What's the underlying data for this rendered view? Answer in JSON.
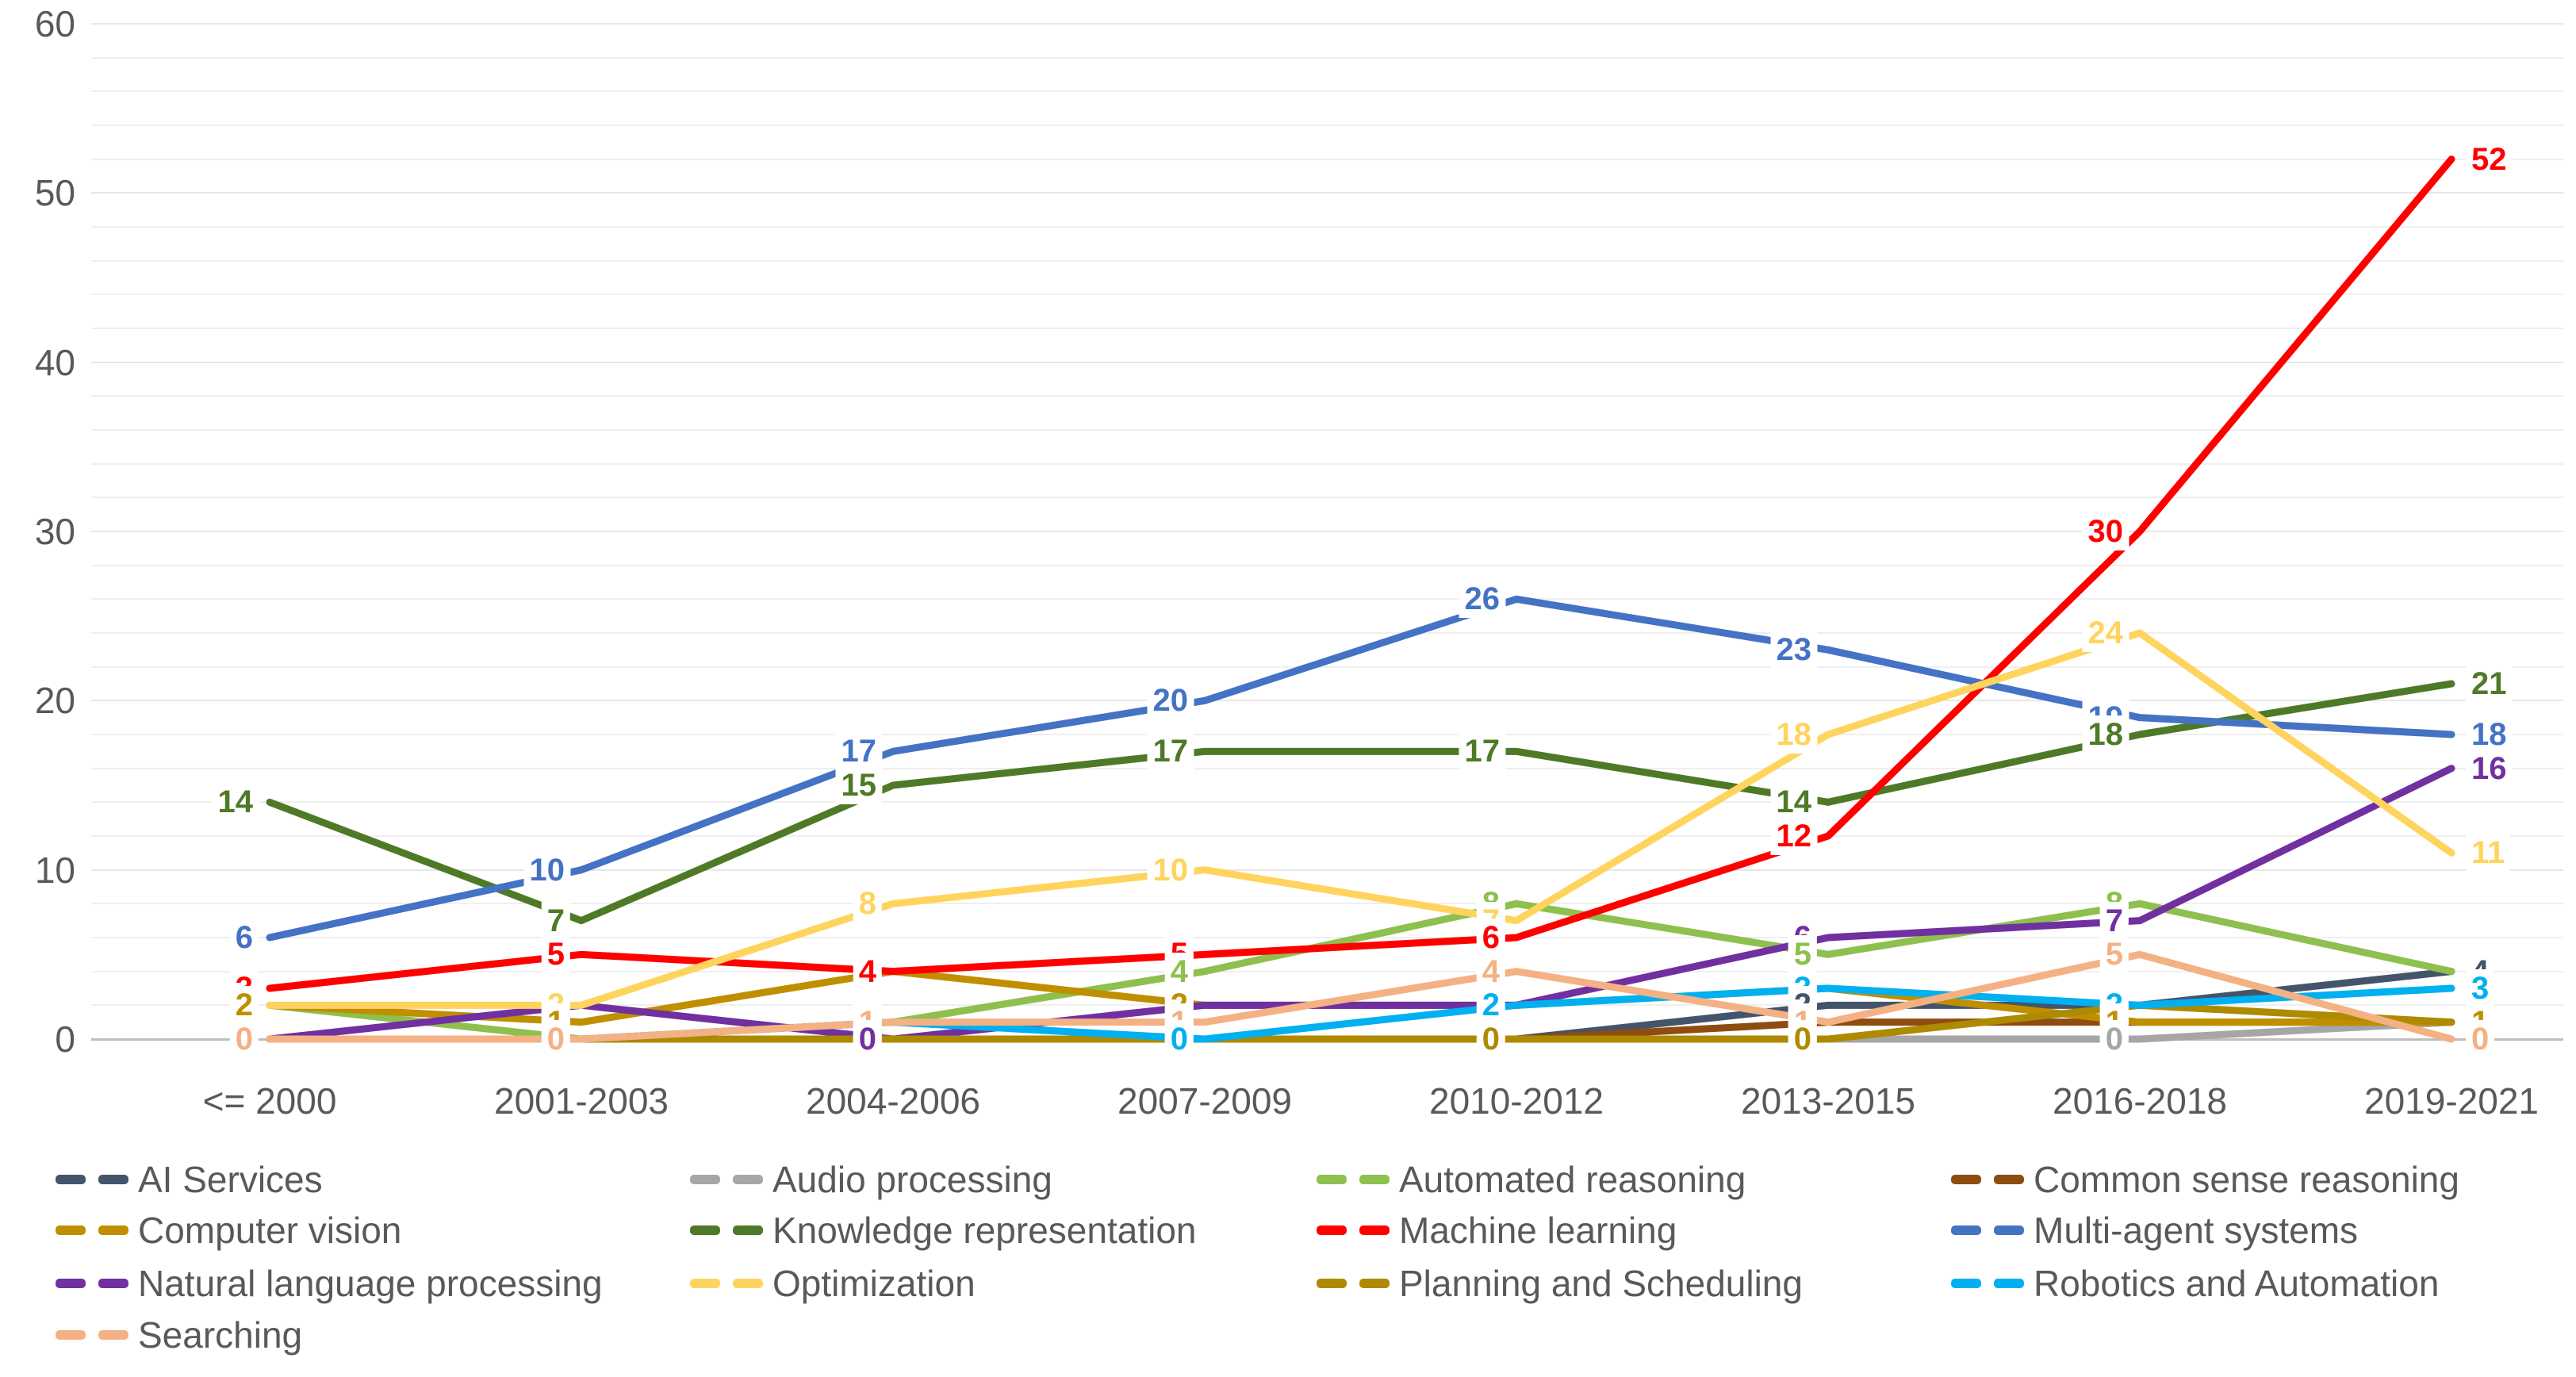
{
  "chart_data": {
    "type": "line",
    "title": "",
    "xlabel": "",
    "ylabel": "",
    "categories": [
      "<= 2000",
      "2001-2003",
      "2004-2006",
      "2007-2009",
      "2010-2012",
      "2013-2015",
      "2016-2018",
      "2019-2021"
    ],
    "series": [
      {
        "name": "AI Services",
        "color": "#44546A",
        "values": [
          0,
          0,
          0,
          0,
          0,
          2,
          2,
          4
        ]
      },
      {
        "name": "Audio processing",
        "color": "#A6A6A6",
        "values": [
          0,
          0,
          0,
          0,
          0,
          0,
          0,
          1
        ]
      },
      {
        "name": "Automated reasoning",
        "color": "#8DC04E",
        "values": [
          2,
          0,
          1,
          4,
          8,
          5,
          8,
          4
        ]
      },
      {
        "name": "Common sense reasoning",
        "color": "#8E4C10",
        "values": [
          0,
          0,
          0,
          0,
          0,
          1,
          1,
          1
        ]
      },
      {
        "name": "Computer vision",
        "color": "#BF8F00",
        "values": [
          2,
          1,
          4,
          2,
          2,
          3,
          1,
          1
        ]
      },
      {
        "name": "Knowledge representation",
        "color": "#4E7A27",
        "values": [
          14,
          7,
          15,
          17,
          17,
          14,
          18,
          21
        ]
      },
      {
        "name": "Machine learning",
        "color": "#FF0000",
        "values": [
          3,
          5,
          4,
          5,
          6,
          12,
          30,
          52
        ]
      },
      {
        "name": "Multi-agent systems",
        "color": "#4472C4",
        "values": [
          6,
          10,
          17,
          20,
          26,
          23,
          19,
          18
        ]
      },
      {
        "name": "Natural language processing",
        "color": "#7030A0",
        "values": [
          0,
          2,
          0,
          2,
          2,
          6,
          7,
          16
        ]
      },
      {
        "name": "Optimization",
        "color": "#FFD45E",
        "values": [
          2,
          2,
          8,
          10,
          7,
          18,
          24,
          11
        ]
      },
      {
        "name": "Planning and Scheduling",
        "color": "#AD8A00",
        "values": [
          0,
          0,
          0,
          0,
          0,
          0,
          2,
          1
        ]
      },
      {
        "name": "Robotics and Automation",
        "color": "#00B0F0",
        "values": [
          0,
          0,
          1,
          0,
          2,
          3,
          2,
          3
        ]
      },
      {
        "name": "Searching",
        "color": "#F4B183",
        "values": [
          0,
          0,
          1,
          1,
          4,
          1,
          5,
          0
        ]
      }
    ],
    "ylim": [
      0,
      60
    ],
    "yticks": [
      0,
      10,
      20,
      30,
      40,
      50,
      60
    ],
    "minor_grid_step": 2,
    "grid": true,
    "legend_position": "bottom",
    "legend_columns": 4,
    "visible_labels": [
      [
        {
          "v": 14,
          "s": "Knowledge representation"
        },
        {
          "v": 6,
          "s": "Multi-agent systems"
        },
        {
          "v": 3,
          "s": "Machine learning"
        },
        {
          "v": 2,
          "s": "Computer vision"
        },
        {
          "v": 0,
          "s": "Searching"
        }
      ],
      [
        {
          "v": 10,
          "s": "Multi-agent systems"
        },
        {
          "v": 7,
          "s": "Knowledge representation"
        },
        {
          "v": 5,
          "s": "Machine learning"
        },
        {
          "v": 2,
          "s": "Optimization"
        },
        {
          "v": 1,
          "s": "Computer vision"
        },
        {
          "v": 0,
          "s": "Searching"
        }
      ],
      [
        {
          "v": 17,
          "s": "Multi-agent systems"
        },
        {
          "v": 15,
          "s": "Knowledge representation"
        },
        {
          "v": 8,
          "s": "Optimization"
        },
        {
          "v": 4,
          "s": "Machine learning"
        },
        {
          "v": 1,
          "s": "Searching"
        },
        {
          "v": 0,
          "s": "Natural language processing"
        }
      ],
      [
        {
          "v": 20,
          "s": "Multi-agent systems"
        },
        {
          "v": 17,
          "s": "Knowledge representation"
        },
        {
          "v": 10,
          "s": "Optimization"
        },
        {
          "v": 5,
          "s": "Machine learning"
        },
        {
          "v": 4,
          "s": "Automated reasoning"
        },
        {
          "v": 2,
          "s": "Computer vision"
        },
        {
          "v": 1,
          "s": "Searching"
        },
        {
          "v": 0,
          "s": "Robotics and Automation"
        }
      ],
      [
        {
          "v": 26,
          "s": "Multi-agent systems"
        },
        {
          "v": 17,
          "s": "Knowledge representation"
        },
        {
          "v": 8,
          "s": "Automated reasoning"
        },
        {
          "v": 7,
          "s": "Optimization"
        },
        {
          "v": 6,
          "s": "Machine learning"
        },
        {
          "v": 4,
          "s": "Searching"
        },
        {
          "v": 2,
          "s": "Robotics and Automation"
        },
        {
          "v": 0,
          "s": "Planning and Scheduling"
        }
      ],
      [
        {
          "v": 23,
          "s": "Multi-agent systems"
        },
        {
          "v": 18,
          "s": "Optimization"
        },
        {
          "v": 14,
          "s": "Knowledge representation"
        },
        {
          "v": 12,
          "s": "Machine learning"
        },
        {
          "v": 6,
          "s": "Natural language processing"
        },
        {
          "v": 5,
          "s": "Automated reasoning"
        },
        {
          "v": 3,
          "s": "Robotics and Automation"
        },
        {
          "v": 2,
          "s": "AI Services"
        },
        {
          "v": 1,
          "s": "Searching"
        },
        {
          "v": 0,
          "s": "Planning and Scheduling"
        }
      ],
      [
        {
          "v": 30,
          "s": "Machine learning"
        },
        {
          "v": 24,
          "s": "Optimization"
        },
        {
          "v": 19,
          "s": "Multi-agent systems"
        },
        {
          "v": 18,
          "s": "Knowledge representation"
        },
        {
          "v": 8,
          "s": "Automated reasoning"
        },
        {
          "v": 7,
          "s": "Natural language processing"
        },
        {
          "v": 5,
          "s": "Searching"
        },
        {
          "v": 2,
          "s": "Robotics and Automation"
        },
        {
          "v": 1,
          "s": "Computer vision"
        },
        {
          "v": 0,
          "s": "Audio processing"
        }
      ],
      [
        {
          "v": 52,
          "s": "Machine learning"
        },
        {
          "v": 21,
          "s": "Knowledge representation"
        },
        {
          "v": 18,
          "s": "Multi-agent systems"
        },
        {
          "v": 16,
          "s": "Natural language processing"
        },
        {
          "v": 11,
          "s": "Optimization"
        },
        {
          "v": 4,
          "s": "AI Services"
        },
        {
          "v": 3,
          "s": "Robotics and Automation"
        },
        {
          "v": 1,
          "s": "Computer vision"
        },
        {
          "v": 0,
          "s": "Searching"
        }
      ]
    ]
  }
}
